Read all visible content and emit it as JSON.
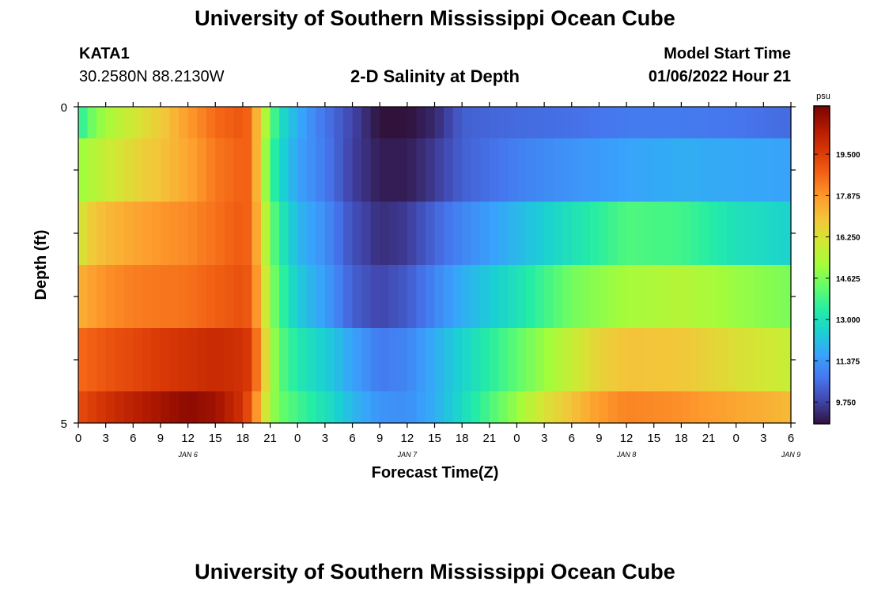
{
  "header": {
    "title": "University of Southern Mississippi Ocean Cube",
    "station_id": "KATA1",
    "coordinates": "30.2580N  88.2130W",
    "subtitle": "2-D Salinity at Depth",
    "model_start_label": "Model Start Time",
    "model_start_value": "01/06/2022 Hour 21"
  },
  "footer": {
    "title": "University of Southern Mississippi Ocean Cube"
  },
  "colorbar": {
    "unit": "psu",
    "min": 8.9,
    "max": 21.4,
    "ticks": [
      "9.750",
      "11.375",
      "13.000",
      "14.625",
      "16.250",
      "17.875",
      "19.500"
    ],
    "tick_values": [
      9.75,
      11.375,
      13.0,
      14.625,
      16.25,
      17.875,
      19.5
    ],
    "stops": [
      "#30123b",
      "#4145ab",
      "#4675ed",
      "#39a2fc",
      "#1bcfd4",
      "#24eca6",
      "#61fc6c",
      "#a4fc3b",
      "#d1e834",
      "#f3c63a",
      "#fe9b2d",
      "#f36315",
      "#d93806",
      "#b11901",
      "#7a0402"
    ]
  },
  "chart_data": {
    "type": "heatmap",
    "xlabel": "Forecast Time(Z)",
    "ylabel": "Depth (ft)",
    "x_hour_ticks": [
      "0",
      "3",
      "6",
      "9",
      "12",
      "15",
      "18",
      "21",
      "0",
      "3",
      "6",
      "9",
      "12",
      "15",
      "18",
      "21",
      "0",
      "3",
      "6",
      "9",
      "12",
      "15",
      "18",
      "21",
      "0",
      "3",
      "6"
    ],
    "day_labels": [
      {
        "label": "JAN 6",
        "hour": 12
      },
      {
        "label": "JAN 7",
        "hour": 36
      },
      {
        "label": "JAN 8",
        "hour": 60
      },
      {
        "label": "JAN 9",
        "hour": 78
      }
    ],
    "xlim_hours": [
      0,
      78
    ],
    "ylim": [
      0,
      5
    ],
    "y_ticks": [
      "0",
      "5"
    ],
    "depth_levels": [
      0,
      1,
      2,
      3,
      4,
      5
    ],
    "layers": [
      {
        "depth": "0-0.5",
        "keys": [
          [
            0,
            13.2
          ],
          [
            1,
            14.2
          ],
          [
            3,
            15.2
          ],
          [
            6,
            16.0
          ],
          [
            9,
            16.8
          ],
          [
            12,
            17.8
          ],
          [
            15,
            18.6
          ],
          [
            18,
            19.0
          ],
          [
            19,
            18.5
          ],
          [
            20,
            16.2
          ],
          [
            21,
            14.5
          ],
          [
            22,
            13.0
          ],
          [
            24,
            11.8
          ],
          [
            26,
            11.0
          ],
          [
            30,
            9.8
          ],
          [
            32,
            9.2
          ],
          [
            33,
            8.9
          ],
          [
            36,
            8.9
          ],
          [
            39,
            9.3
          ],
          [
            41,
            9.9
          ],
          [
            42,
            10.3
          ],
          [
            48,
            10.5
          ],
          [
            54,
            10.6
          ],
          [
            60,
            10.8
          ],
          [
            66,
            10.8
          ],
          [
            72,
            10.7
          ],
          [
            78,
            10.5
          ]
        ]
      },
      {
        "depth": "0.5-1.5",
        "keys": [
          [
            0,
            15.0
          ],
          [
            3,
            15.8
          ],
          [
            6,
            16.5
          ],
          [
            9,
            17.0
          ],
          [
            12,
            17.6
          ],
          [
            15,
            18.4
          ],
          [
            18,
            18.8
          ],
          [
            19,
            18.7
          ],
          [
            20,
            16.0
          ],
          [
            21,
            14.0
          ],
          [
            22,
            12.8
          ],
          [
            24,
            11.6
          ],
          [
            27,
            10.8
          ],
          [
            30,
            9.7
          ],
          [
            33,
            9.1
          ],
          [
            36,
            9.1
          ],
          [
            39,
            9.6
          ],
          [
            42,
            10.3
          ],
          [
            45,
            10.6
          ],
          [
            48,
            10.9
          ],
          [
            54,
            11.3
          ],
          [
            60,
            11.6
          ],
          [
            66,
            11.8
          ],
          [
            72,
            11.7
          ],
          [
            78,
            11.6
          ]
        ]
      },
      {
        "depth": "1.5-2.5",
        "keys": [
          [
            0,
            15.8
          ],
          [
            1,
            16.7
          ],
          [
            3,
            17.2
          ],
          [
            6,
            17.6
          ],
          [
            9,
            17.9
          ],
          [
            12,
            18.1
          ],
          [
            15,
            18.5
          ],
          [
            18,
            18.9
          ],
          [
            19,
            18.6
          ],
          [
            20,
            16.5
          ],
          [
            21,
            14.6
          ],
          [
            22,
            13.4
          ],
          [
            24,
            12.0
          ],
          [
            27,
            11.2
          ],
          [
            30,
            10.0
          ],
          [
            33,
            9.4
          ],
          [
            36,
            9.6
          ],
          [
            39,
            10.4
          ],
          [
            42,
            11.0
          ],
          [
            48,
            12.0
          ],
          [
            54,
            13.0
          ],
          [
            57,
            13.5
          ],
          [
            60,
            14.0
          ],
          [
            66,
            13.8
          ],
          [
            72,
            13.0
          ],
          [
            78,
            12.6
          ]
        ]
      },
      {
        "depth": "2.5-3.5",
        "keys": [
          [
            0,
            17.4
          ],
          [
            3,
            18.0
          ],
          [
            6,
            18.3
          ],
          [
            9,
            18.4
          ],
          [
            12,
            18.5
          ],
          [
            15,
            18.8
          ],
          [
            18,
            19.1
          ],
          [
            19,
            18.8
          ],
          [
            20,
            17.0
          ],
          [
            21,
            15.0
          ],
          [
            22,
            13.8
          ],
          [
            24,
            12.4
          ],
          [
            27,
            11.5
          ],
          [
            30,
            10.3
          ],
          [
            33,
            9.8
          ],
          [
            36,
            10.2
          ],
          [
            39,
            11.0
          ],
          [
            42,
            11.8
          ],
          [
            48,
            13.0
          ],
          [
            54,
            14.5
          ],
          [
            60,
            15.2
          ],
          [
            66,
            15.5
          ],
          [
            72,
            15.0
          ],
          [
            78,
            14.6
          ]
        ]
      },
      {
        "depth": "3.5-4.5",
        "keys": [
          [
            0,
            18.6
          ],
          [
            3,
            19.0
          ],
          [
            6,
            19.3
          ],
          [
            9,
            19.6
          ],
          [
            12,
            19.8
          ],
          [
            15,
            20.0
          ],
          [
            18,
            19.8
          ],
          [
            19,
            19.5
          ],
          [
            20,
            17.5
          ],
          [
            21,
            15.5
          ],
          [
            22,
            14.2
          ],
          [
            24,
            13.2
          ],
          [
            27,
            12.5
          ],
          [
            30,
            11.6
          ],
          [
            33,
            10.8
          ],
          [
            36,
            11.0
          ],
          [
            39,
            11.8
          ],
          [
            42,
            12.6
          ],
          [
            48,
            14.2
          ],
          [
            54,
            15.8
          ],
          [
            57,
            16.6
          ],
          [
            60,
            17.0
          ],
          [
            66,
            16.9
          ],
          [
            72,
            16.3
          ],
          [
            78,
            15.8
          ]
        ]
      },
      {
        "depth": "4.5-5",
        "keys": [
          [
            0,
            19.2
          ],
          [
            3,
            19.8
          ],
          [
            6,
            20.3
          ],
          [
            9,
            20.7
          ],
          [
            12,
            21.1
          ],
          [
            15,
            20.8
          ],
          [
            18,
            19.8
          ],
          [
            19,
            18.8
          ],
          [
            20,
            17.0
          ],
          [
            21,
            15.2
          ],
          [
            22,
            14.4
          ],
          [
            24,
            13.8
          ],
          [
            27,
            13.0
          ],
          [
            30,
            12.0
          ],
          [
            33,
            11.3
          ],
          [
            36,
            11.2
          ],
          [
            39,
            11.8
          ],
          [
            42,
            12.8
          ],
          [
            48,
            15.0
          ],
          [
            51,
            16.2
          ],
          [
            54,
            17.0
          ],
          [
            57,
            17.8
          ],
          [
            60,
            18.2
          ],
          [
            66,
            18.0
          ],
          [
            72,
            17.6
          ],
          [
            78,
            17.2
          ]
        ]
      }
    ]
  }
}
